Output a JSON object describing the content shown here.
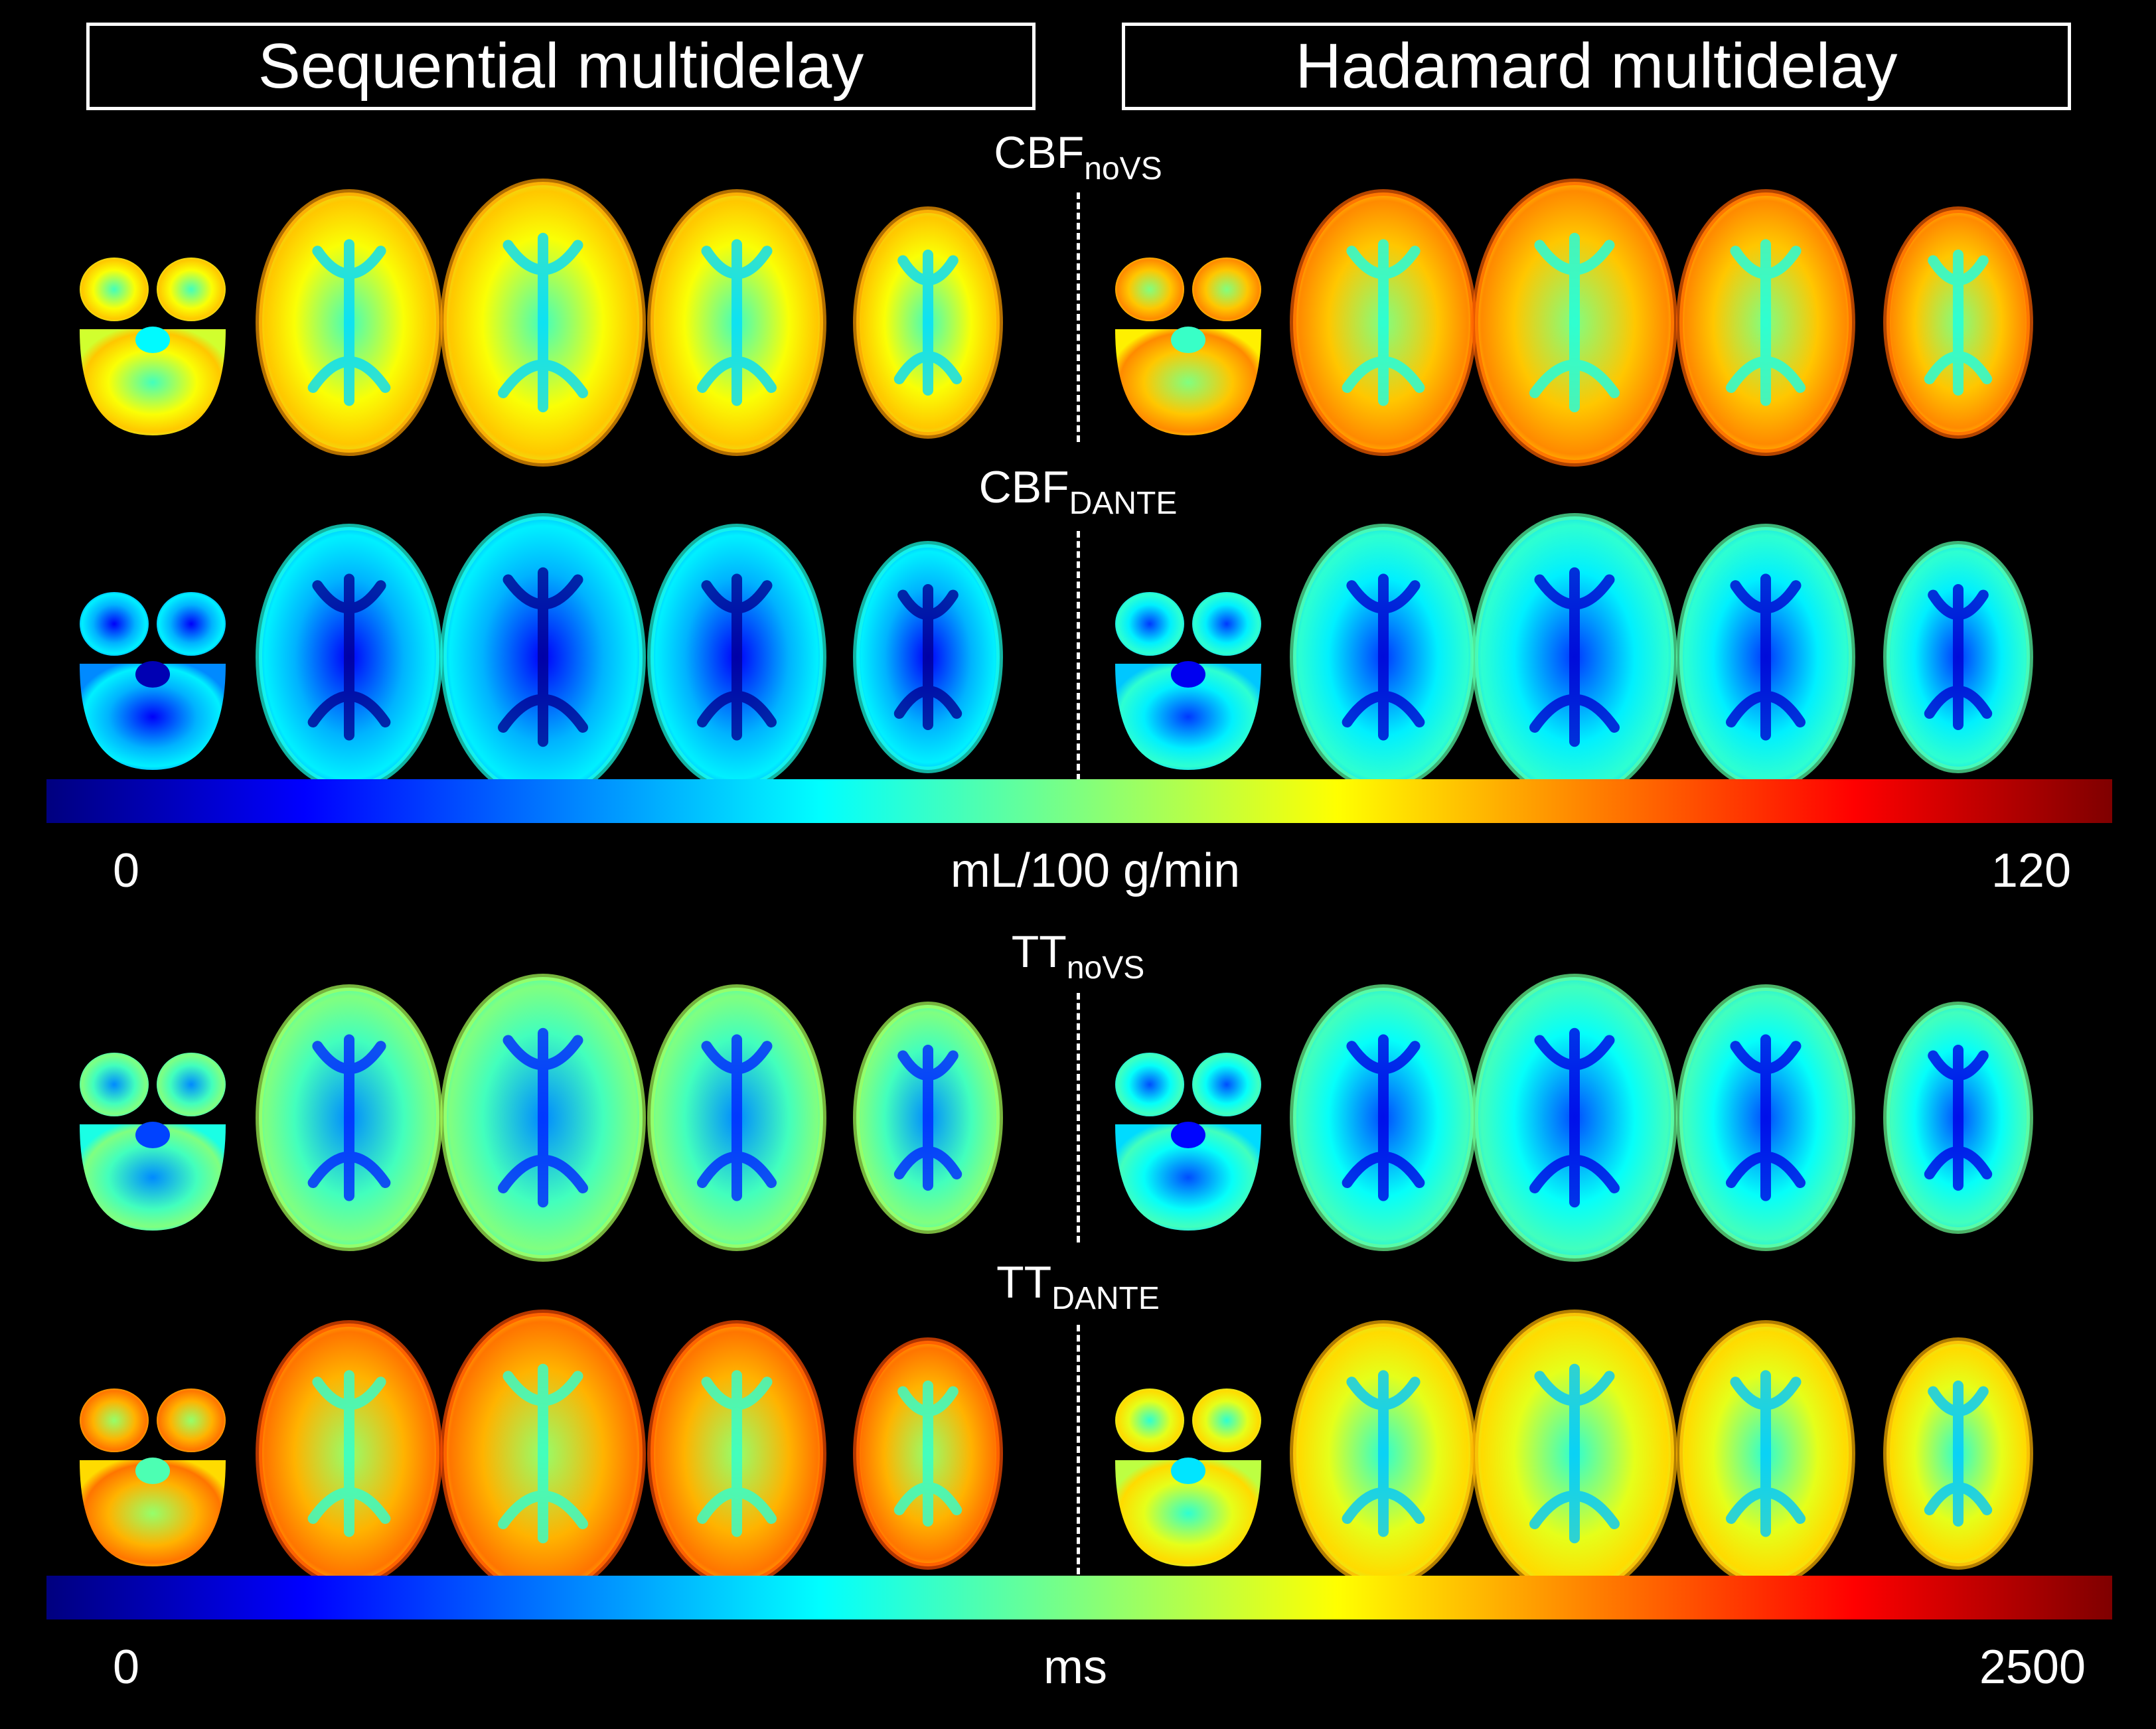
{
  "panels": {
    "left_title": "Sequential multidelay",
    "right_title": "Hadamard multidelay"
  },
  "rows": [
    {
      "label_main": "CBF",
      "label_sub": "noVS",
      "colormap": "jet",
      "level_left": 0.62,
      "level_right": 0.68
    },
    {
      "label_main": "CBF",
      "label_sub": "DANTE",
      "colormap": "jet",
      "level_left": 0.3,
      "level_right": 0.36
    },
    {
      "label_main": "TT",
      "label_sub": "noVS",
      "colormap": "jet",
      "level_left": 0.44,
      "level_right": 0.38
    },
    {
      "label_main": "TT",
      "label_sub": "DANTE",
      "colormap": "jet",
      "level_left": 0.7,
      "level_right": 0.6
    }
  ],
  "colorbars": [
    {
      "min": "0",
      "unit": "mL/100 g/min",
      "max": "120"
    },
    {
      "min": "0",
      "unit": "ms",
      "max": "2500"
    }
  ],
  "colors": {
    "background": "#000000",
    "foreground": "#ffffff"
  }
}
